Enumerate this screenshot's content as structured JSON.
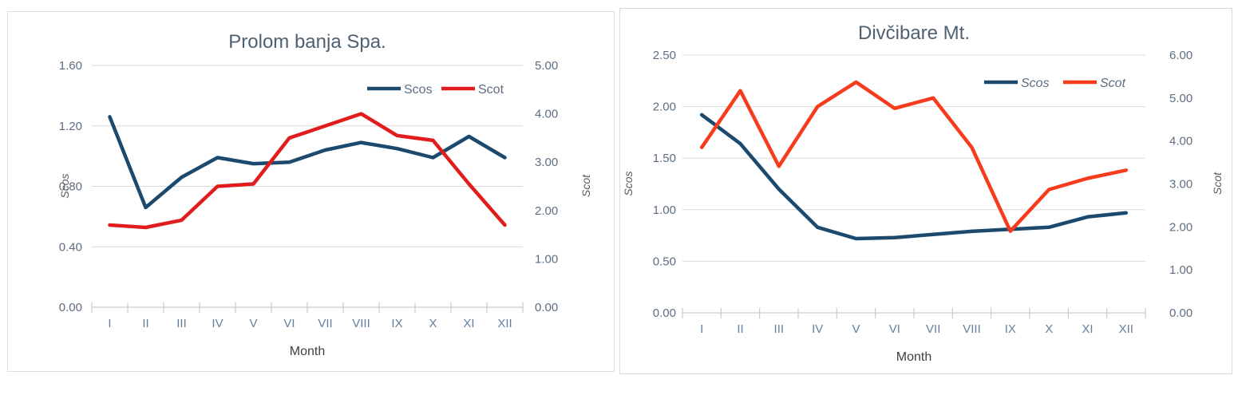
{
  "chart_data": [
    {
      "type": "line",
      "title": "Prolom banja Spa.",
      "xlabel": "Month",
      "ylabel_left": "Scos",
      "ylabel_right": "Scot",
      "categories": [
        "I",
        "II",
        "III",
        "IV",
        "V",
        "VI",
        "VII",
        "VIII",
        "IX",
        "X",
        "XI",
        "XII"
      ],
      "series": [
        {
          "name": "Scos",
          "axis": "left",
          "color": "#1c4a6e",
          "values": [
            1.26,
            0.66,
            0.86,
            0.99,
            0.95,
            0.96,
            1.04,
            1.09,
            1.05,
            0.99,
            1.13,
            0.99
          ]
        },
        {
          "name": "Scot",
          "axis": "right",
          "color": "#e11c1c",
          "values": [
            1.7,
            1.65,
            1.8,
            2.5,
            2.55,
            3.5,
            3.75,
            4.0,
            3.55,
            3.45,
            2.55,
            1.7
          ]
        }
      ],
      "left_axis": {
        "range": [
          0,
          1.6
        ],
        "tick_labels": [
          "1.60",
          "1.20",
          "0.80",
          "0.40",
          "0.00"
        ]
      },
      "right_axis": {
        "range": [
          0,
          5
        ],
        "tick_labels": [
          "5.00",
          "4.00",
          "3.00",
          "2.00",
          "1.00",
          "0.00"
        ]
      },
      "grid": true,
      "legend_position": "top-right-inside",
      "legend_italic": false
    },
    {
      "type": "line",
      "title": "Divčibare Mt.",
      "xlabel": "Month",
      "ylabel_left": "Scos",
      "ylabel_right": "Scot",
      "categories": [
        "I",
        "II",
        "III",
        "IV",
        "V",
        "VI",
        "VII",
        "VIII",
        "IX",
        "X",
        "XI",
        "XII"
      ],
      "series": [
        {
          "name": "Scos",
          "axis": "left",
          "color": "#1c4a6e",
          "values": [
            1.92,
            1.64,
            1.2,
            0.83,
            0.72,
            0.73,
            0.76,
            0.79,
            0.81,
            0.83,
            0.93,
            0.97
          ]
        },
        {
          "name": "Scot",
          "axis": "right",
          "color": "#f73b1d",
          "values": [
            3.85,
            5.17,
            3.41,
            4.8,
            5.37,
            4.76,
            5.0,
            3.85,
            1.9,
            2.87,
            3.13,
            3.32
          ]
        }
      ],
      "left_axis": {
        "range": [
          0,
          2.5
        ],
        "tick_labels": [
          "2.50",
          "2.00",
          "1.50",
          "1.00",
          "0.50",
          "0.00"
        ]
      },
      "right_axis": {
        "range": [
          0,
          6
        ],
        "tick_labels": [
          "6.00",
          "5.00",
          "4.00",
          "3.00",
          "2.00",
          "1.00",
          "0.00"
        ]
      },
      "grid": true,
      "legend_position": "top-right-inside",
      "legend_italic": true
    }
  ]
}
